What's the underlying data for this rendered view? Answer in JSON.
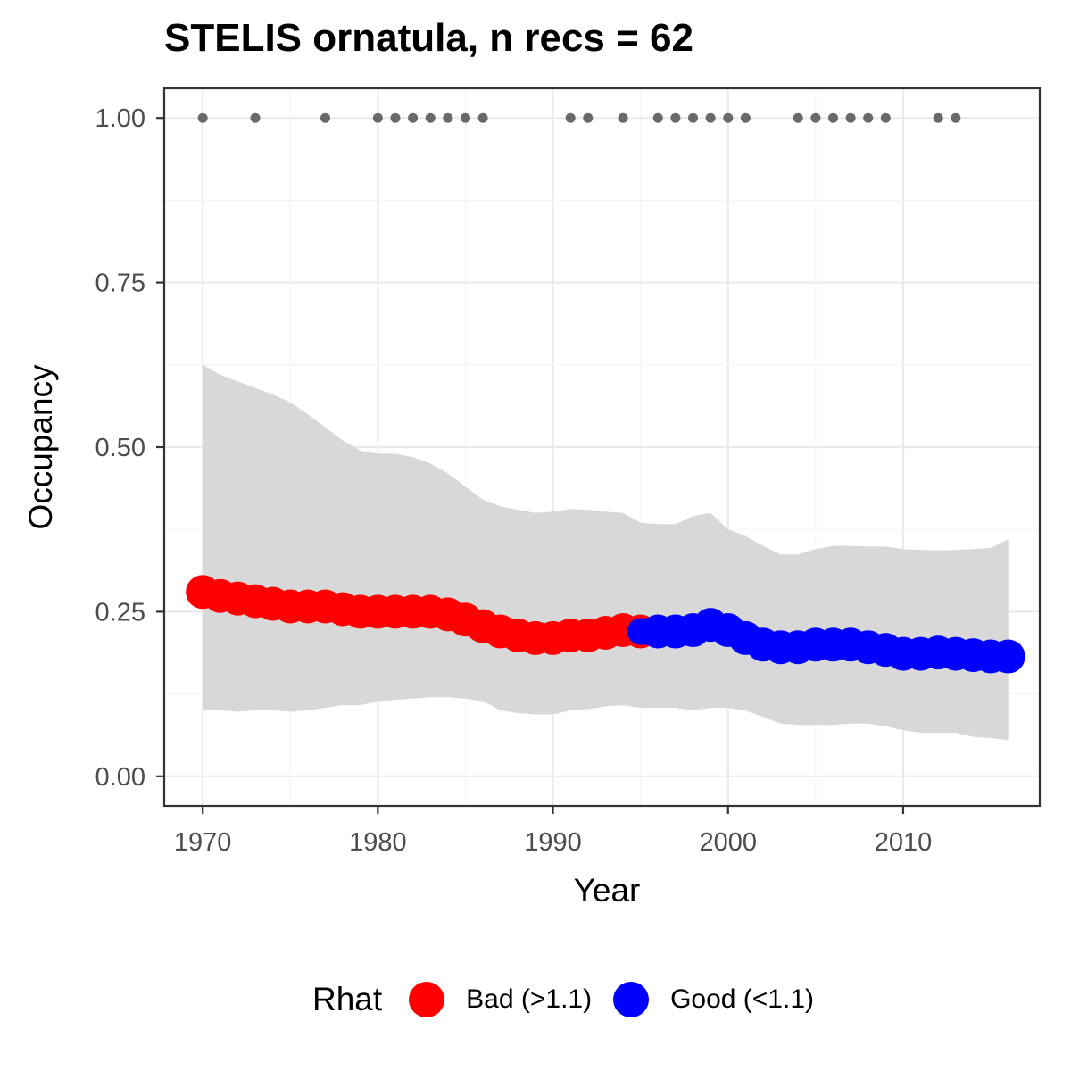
{
  "chart_data": {
    "type": "line",
    "title": "STELIS ornatula, n recs = 62",
    "xlabel": "Year",
    "ylabel": "Occupancy",
    "xlim": [
      1967.8,
      2017.8
    ],
    "ylim": [
      -0.045,
      1.045
    ],
    "x_ticks": [
      1970,
      1980,
      1990,
      2000,
      2010
    ],
    "y_ticks": [
      0.0,
      0.25,
      0.5,
      0.75,
      1.0
    ],
    "y_tick_labels": [
      "0.00",
      "0.25",
      "0.50",
      "0.75",
      "1.00"
    ],
    "grid": true,
    "legend": {
      "title": "Rhat",
      "position": "bottom",
      "entries": [
        {
          "label": "Bad (>1.1)",
          "color": "#ff0000"
        },
        {
          "label": "Good (<1.1)",
          "color": "#0000ff"
        }
      ]
    },
    "series": [
      {
        "name": "Bad (>1.1)",
        "color": "#ff0000",
        "x": [
          1970,
          1971,
          1972,
          1973,
          1974,
          1975,
          1976,
          1977,
          1978,
          1979,
          1980,
          1981,
          1982,
          1983,
          1984,
          1985,
          1986,
          1987,
          1988,
          1989,
          1990,
          1991,
          1992,
          1993,
          1994,
          1995
        ],
        "y": [
          0.28,
          0.274,
          0.27,
          0.266,
          0.262,
          0.258,
          0.258,
          0.258,
          0.254,
          0.25,
          0.25,
          0.25,
          0.25,
          0.25,
          0.246,
          0.238,
          0.228,
          0.22,
          0.214,
          0.21,
          0.21,
          0.214,
          0.214,
          0.218,
          0.222,
          0.22
        ]
      },
      {
        "name": "Good (<1.1)",
        "color": "#0000ff",
        "x": [
          1996,
          1997,
          1998,
          1999,
          2000,
          2001,
          2002,
          2003,
          2004,
          2005,
          2006,
          2007,
          2008,
          2009,
          2010,
          2011,
          2012,
          2013,
          2014,
          2015,
          2016
        ],
        "y": [
          0.22,
          0.22,
          0.222,
          0.23,
          0.222,
          0.21,
          0.2,
          0.196,
          0.196,
          0.2,
          0.2,
          0.2,
          0.196,
          0.192,
          0.186,
          0.186,
          0.188,
          0.186,
          0.184,
          0.182,
          0.182
        ]
      }
    ],
    "ribbon": {
      "color": "#d6d6d6",
      "x": [
        1970,
        1971,
        1972,
        1973,
        1974,
        1975,
        1976,
        1977,
        1978,
        1979,
        1980,
        1981,
        1982,
        1983,
        1984,
        1985,
        1986,
        1987,
        1988,
        1989,
        1990,
        1991,
        1992,
        1993,
        1994,
        1995,
        1996,
        1997,
        1998,
        1999,
        2000,
        2001,
        2002,
        2003,
        2004,
        2005,
        2006,
        2007,
        2008,
        2009,
        2010,
        2011,
        2012,
        2013,
        2014,
        2015,
        2016
      ],
      "lower": [
        0.1,
        0.1,
        0.098,
        0.1,
        0.1,
        0.098,
        0.1,
        0.104,
        0.108,
        0.108,
        0.114,
        0.116,
        0.118,
        0.12,
        0.12,
        0.118,
        0.114,
        0.1,
        0.096,
        0.094,
        0.094,
        0.1,
        0.102,
        0.106,
        0.108,
        0.104,
        0.104,
        0.104,
        0.1,
        0.104,
        0.104,
        0.1,
        0.09,
        0.08,
        0.078,
        0.078,
        0.078,
        0.08,
        0.08,
        0.076,
        0.07,
        0.066,
        0.066,
        0.066,
        0.06,
        0.058,
        0.055
      ],
      "upper": [
        0.625,
        0.61,
        0.6,
        0.59,
        0.58,
        0.568,
        0.55,
        0.53,
        0.51,
        0.495,
        0.49,
        0.49,
        0.485,
        0.475,
        0.46,
        0.44,
        0.42,
        0.41,
        0.405,
        0.4,
        0.402,
        0.406,
        0.405,
        0.402,
        0.4,
        0.385,
        0.383,
        0.383,
        0.395,
        0.4,
        0.375,
        0.365,
        0.35,
        0.337,
        0.337,
        0.345,
        0.35,
        0.35,
        0.349,
        0.349,
        0.345,
        0.344,
        0.343,
        0.344,
        0.345,
        0.347,
        0.36
      ]
    },
    "observations": {
      "color": "#696969",
      "y": 1.0,
      "x": [
        1970,
        1973,
        1977,
        1980,
        1981,
        1982,
        1983,
        1984,
        1985,
        1986,
        1991,
        1992,
        1994,
        1996,
        1997,
        1998,
        1999,
        2000,
        2001,
        2004,
        2005,
        2006,
        2007,
        2008,
        2009,
        2012,
        2013
      ]
    }
  }
}
